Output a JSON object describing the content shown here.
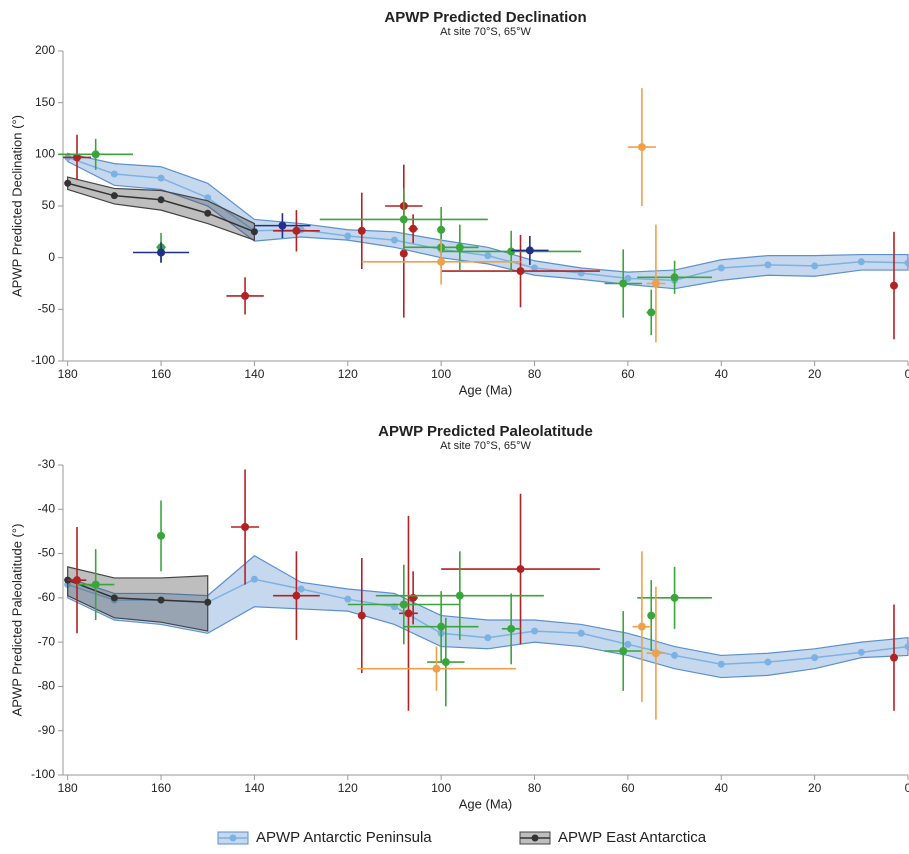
{
  "chart_data": [
    {
      "type": "line",
      "title": "APWP Predicted Declination",
      "subtitle": "At site 70°S, 65°W",
      "x_label": "Age (Ma)",
      "y_label": "APWP Predicted Declination (°)",
      "xlim": [
        181,
        0
      ],
      "xticks": [
        180,
        160,
        140,
        120,
        100,
        80,
        60,
        40,
        20,
        0
      ],
      "ylim": [
        -100,
        200
      ],
      "yticks": [
        -100,
        -50,
        0,
        50,
        100,
        150,
        200
      ],
      "grid": false,
      "series": [
        {
          "color": "#7cb1e3",
          "band": "#5b8fcf",
          "x": [
            180,
            170,
            160,
            150,
            140,
            130,
            120,
            110,
            100,
            90,
            80,
            70,
            60,
            50,
            40,
            30,
            20,
            10,
            0
          ],
          "values": [
            97,
            81,
            77,
            58,
            26,
            27,
            21,
            17,
            8,
            2,
            -10,
            -15,
            -20,
            -22,
            -10,
            -7,
            -8,
            -4,
            -5
          ],
          "upper": [
            101,
            91,
            88,
            72,
            37,
            33,
            27,
            25,
            17,
            10,
            -3,
            -10,
            -14,
            -12,
            -2,
            2,
            2,
            3,
            3
          ],
          "lower": [
            93,
            70,
            66,
            50,
            16,
            20,
            17,
            10,
            0,
            -6,
            -17,
            -21,
            -26,
            -30,
            -22,
            -17,
            -18,
            -12,
            -12
          ]
        },
        {
          "color": "#333333",
          "band": "#444444",
          "x": [
            180,
            170,
            160,
            150,
            140
          ],
          "values": [
            72,
            60,
            56,
            43,
            25
          ],
          "upper": [
            78,
            67,
            65,
            55,
            33
          ],
          "lower": [
            66,
            52,
            46,
            33,
            17
          ]
        }
      ],
      "points": [
        {
          "color": "#b22222",
          "x": [
            178,
            142,
            131,
            117,
            108,
            108,
            106,
            83,
            3
          ],
          "y": [
            97,
            -37,
            26,
            26,
            50,
            4,
            28,
            -13,
            -27
          ],
          "xerr": [
            3,
            4,
            5,
            0,
            4,
            0,
            1,
            17,
            0
          ],
          "yerr": [
            22,
            18,
            20,
            37,
            40,
            62,
            14,
            35,
            52
          ]
        },
        {
          "color": "#3aa53a",
          "x": [
            174,
            160,
            108,
            100,
            100,
            96,
            85,
            61,
            55,
            50
          ],
          "y": [
            100,
            10,
            37,
            27,
            10,
            10,
            6,
            -25,
            -53,
            -19
          ],
          "xerr": [
            8,
            1,
            18,
            0,
            8,
            4,
            15,
            4,
            1,
            8
          ],
          "yerr": [
            15,
            14,
            30,
            22,
            20,
            22,
            20,
            33,
            22,
            16
          ]
        },
        {
          "color": "#f0a04b",
          "x": [
            100,
            57,
            54
          ],
          "y": [
            -4,
            107,
            -25
          ],
          "xerr": [
            17,
            3,
            2
          ],
          "yerr": [
            22,
            57,
            57
          ]
        },
        {
          "color": "#1f2f8a",
          "x": [
            160,
            134,
            81
          ],
          "y": [
            5,
            31,
            7
          ],
          "xerr": [
            6,
            6,
            4
          ],
          "yerr": [
            10,
            12,
            14
          ]
        }
      ]
    },
    {
      "type": "line",
      "title": "APWP Predicted Paleolatitude",
      "subtitle": "At site 70°S, 65°W",
      "x_label": "Age (Ma)",
      "y_label": "APWP Predicted Paleolatitude (°)",
      "xlim": [
        181,
        0
      ],
      "xticks": [
        180,
        160,
        140,
        120,
        100,
        80,
        60,
        40,
        20,
        0
      ],
      "ylim": [
        -100,
        -30
      ],
      "yticks": [
        -100,
        -90,
        -80,
        -70,
        -60,
        -50,
        -40,
        -30
      ],
      "grid": false,
      "series": [
        {
          "name": "APWP Antarctic Peninsula",
          "color": "#7cb1e3",
          "band": "#5b8fcf",
          "x": [
            180,
            170,
            160,
            150,
            140,
            130,
            120,
            110,
            100,
            90,
            80,
            70,
            60,
            50,
            40,
            30,
            20,
            10,
            0
          ],
          "values": [
            -57,
            -60.5,
            -60.5,
            -61,
            -55.8,
            -58,
            -60.3,
            -62,
            -68,
            -69,
            -67.5,
            -68,
            -70.5,
            -73,
            -75,
            -74.5,
            -73.5,
            -72.3,
            -71
          ],
          "upper": [
            -55.5,
            -59,
            -59,
            -59.5,
            -50.5,
            -56.5,
            -58,
            -59,
            -64,
            -65,
            -65,
            -66,
            -68,
            -71,
            -73,
            -72.5,
            -71.5,
            -70,
            -69
          ],
          "lower": [
            -60,
            -65,
            -66,
            -68,
            -62,
            -62.5,
            -63,
            -66,
            -71,
            -71.5,
            -70,
            -71,
            -73,
            -76,
            -78,
            -77.5,
            -76,
            -73.5,
            -73
          ]
        },
        {
          "name": "APWP East Antarctica",
          "color": "#333333",
          "band": "#444444",
          "x": [
            180,
            170,
            160,
            150
          ],
          "values": [
            -56,
            -60,
            -60.5,
            -61
          ],
          "upper": [
            -53,
            -55.5,
            -55.5,
            -55
          ],
          "lower": [
            -59.5,
            -64.5,
            -65.5,
            -67.5
          ]
        }
      ],
      "points": [
        {
          "color": "#b22222",
          "x": [
            178,
            142,
            131,
            117,
            107,
            106,
            83,
            3
          ],
          "y": [
            -56,
            -44,
            -59.5,
            -64,
            -63.5,
            -60,
            -53.5,
            -73.5
          ],
          "xerr": [
            2,
            3,
            5,
            0,
            2,
            1,
            17,
            0
          ],
          "yerr": [
            12,
            13,
            10,
            13,
            22,
            6,
            17,
            12
          ]
        },
        {
          "color": "#3aa53a",
          "x": [
            174,
            160,
            108,
            100,
            99,
            96,
            85,
            61,
            55,
            50
          ],
          "y": [
            -57,
            -46,
            -61.5,
            -66.5,
            -74.5,
            -59.5,
            -67,
            -72,
            -64,
            -60
          ],
          "xerr": [
            4,
            0,
            12,
            8,
            4,
            18,
            2,
            4,
            0,
            8
          ],
          "yerr": [
            8,
            8,
            9,
            8,
            10,
            10,
            8,
            9,
            8,
            7
          ]
        },
        {
          "color": "#f0a04b",
          "x": [
            101,
            57,
            54
          ],
          "y": [
            -76,
            -66.5,
            -72.5
          ],
          "xerr": [
            17,
            2,
            2
          ],
          "yerr": [
            5,
            17,
            15
          ]
        }
      ]
    }
  ]
}
